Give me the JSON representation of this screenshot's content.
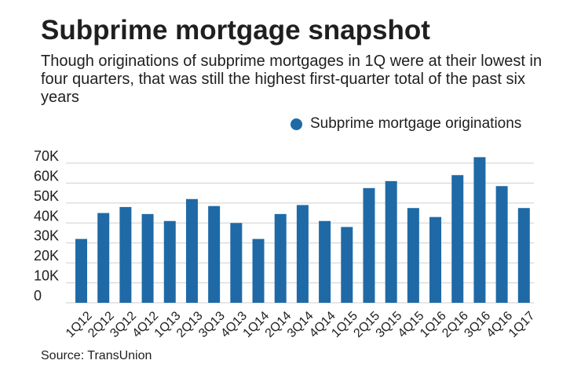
{
  "title": "Subprime mortgage snapshot",
  "subtitle": "Though originations of subprime mortgages in 1Q were at their lowest in four quarters, that was still the highest first-quarter total of the past six years",
  "source": "Source: TransUnion",
  "colors": {
    "bar": "#1f6aa6",
    "grid": "#cfcfcf",
    "text": "#1f1f1f"
  },
  "chart_data": {
    "type": "bar",
    "title": "Subprime mortgage snapshot",
    "xlabel": "",
    "ylabel": "",
    "ylim": [
      0,
      70000
    ],
    "grid": true,
    "legend_placement": "top-right",
    "y_ticks": [
      {
        "value": 0,
        "label": "0"
      },
      {
        "value": 10000,
        "label": "10K"
      },
      {
        "value": 20000,
        "label": "20K"
      },
      {
        "value": 30000,
        "label": "30K"
      },
      {
        "value": 40000,
        "label": "40K"
      },
      {
        "value": 50000,
        "label": "50K"
      },
      {
        "value": 60000,
        "label": "60K"
      },
      {
        "value": 70000,
        "label": "70K"
      }
    ],
    "categories": [
      "1Q12",
      "2Q12",
      "3Q12",
      "4Q12",
      "1Q13",
      "2Q13",
      "3Q13",
      "4Q13",
      "1Q14",
      "2Q14",
      "3Q14",
      "4Q14",
      "1Q15",
      "2Q15",
      "3Q15",
      "4Q15",
      "1Q16",
      "2Q16",
      "3Q16",
      "4Q16",
      "1Q17"
    ],
    "series": [
      {
        "name": "Subprime mortgage originations",
        "values": [
          32000,
          45000,
          48000,
          44500,
          41000,
          52000,
          48500,
          40000,
          32000,
          44500,
          49000,
          41000,
          38000,
          57500,
          61000,
          47500,
          43000,
          64000,
          73000,
          58500,
          47500
        ]
      }
    ]
  }
}
